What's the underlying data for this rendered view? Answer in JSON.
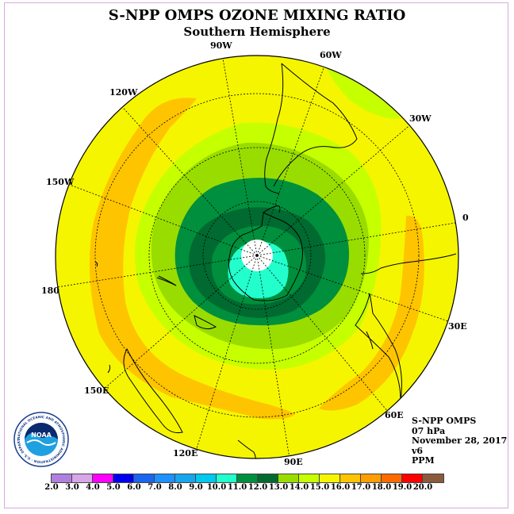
{
  "title": "S-NPP OMPS OZONE MIXING RATIO",
  "subtitle": "Southern Hemisphere",
  "longitude_labels": [
    "90W",
    "60W",
    "120W",
    "30W",
    "150W",
    "0",
    "180",
    "30E",
    "150E",
    "60E",
    "120E",
    "90E"
  ],
  "info": {
    "instrument": "S-NPP OMPS",
    "level": "07 hPa",
    "date": "November 28, 2017",
    "version": "v6",
    "units": "PPM"
  },
  "colorbar": {
    "ticks": [
      "2.0",
      "3.0",
      "4.0",
      "5.0",
      "6.0",
      "7.0",
      "8.0",
      "9.0",
      "10.0",
      "11.0",
      "12.0",
      "13.0",
      "14.0",
      "15.0",
      "16.0",
      "17.0",
      "18.0",
      "19.0",
      "20.0"
    ],
    "colors": [
      "#b07fe0",
      "#d9a6e8",
      "#ff00ff",
      "#0000ee",
      "#1a66f0",
      "#1e90ff",
      "#17a5ee",
      "#00c8ee",
      "#22ffcc",
      "#008f3c",
      "#006a30",
      "#99dd00",
      "#c6ff00",
      "#f5f500",
      "#ffc400",
      "#ff9e00",
      "#ff6a00",
      "#ff0000",
      "#8b5a3c"
    ]
  },
  "logo": {
    "text": "NOAA",
    "ring_text": "NATIONAL OCEANIC AND ATMOSPHERIC ADMINISTRATION · U.S. DEPARTMENT OF COMMERCE"
  },
  "colors": {
    "high_band": "#ffc400",
    "background_field": "#f5f500",
    "lime": "#c6ff00",
    "light_green": "#99dd00",
    "green": "#008f3c",
    "dark_green": "#006a30",
    "cyan": "#22ffcc"
  }
}
